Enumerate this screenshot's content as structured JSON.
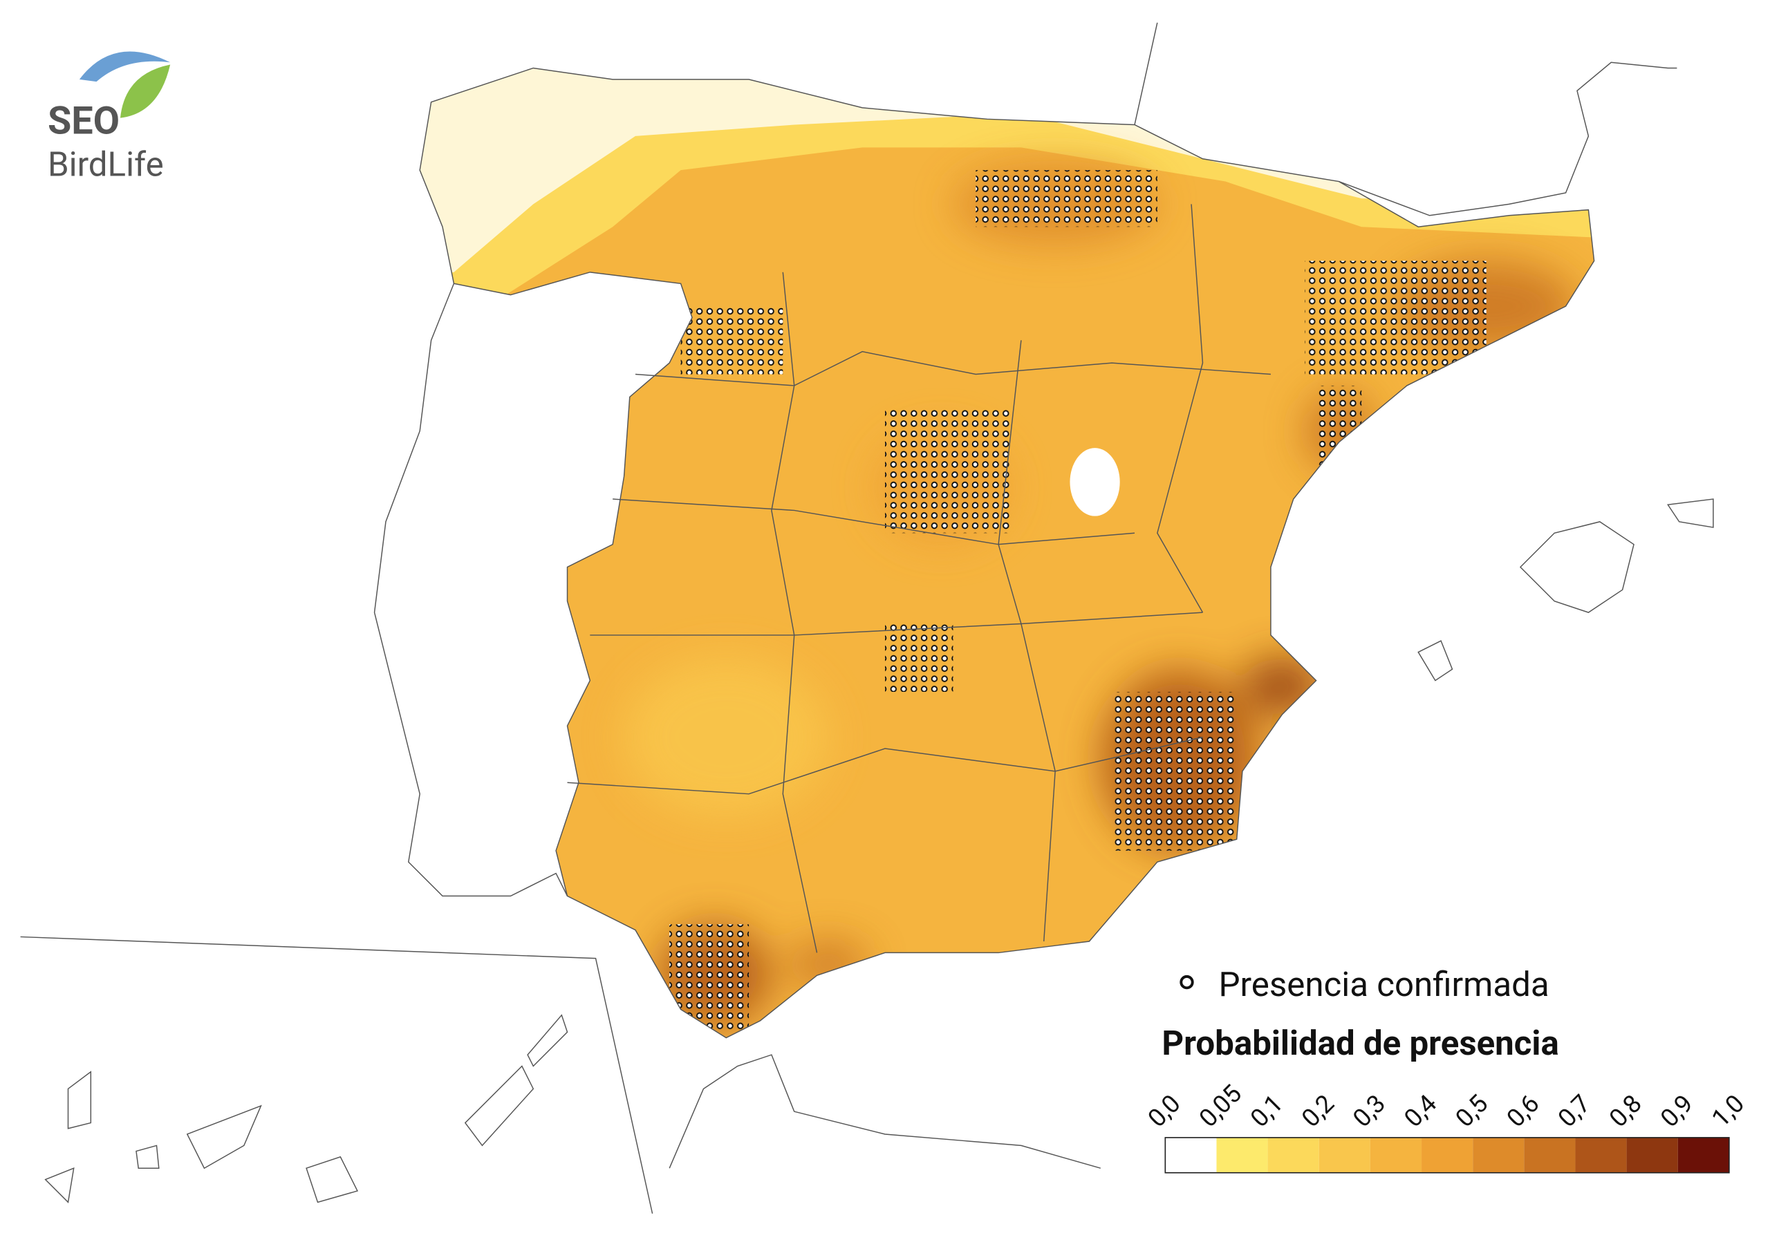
{
  "logo": {
    "line1": "SEO",
    "line2": "BirdLife"
  },
  "legend": {
    "marker_label": "Presencia confirmada",
    "title": "Probabilidad de presencia",
    "ticks": [
      "0,0",
      "0,05",
      "0,1",
      "0,2",
      "0,3",
      "0,4",
      "0,5",
      "0,6",
      "0,7",
      "0,8",
      "0,9",
      "1,0"
    ],
    "colors": [
      "#ffffff",
      "#fdea6c",
      "#fcd95b",
      "#f9c64c",
      "#f5b43f",
      "#efa234",
      "#de8b2a",
      "#c97322",
      "#ae5519",
      "#8e3710",
      "#6b1107"
    ]
  }
}
